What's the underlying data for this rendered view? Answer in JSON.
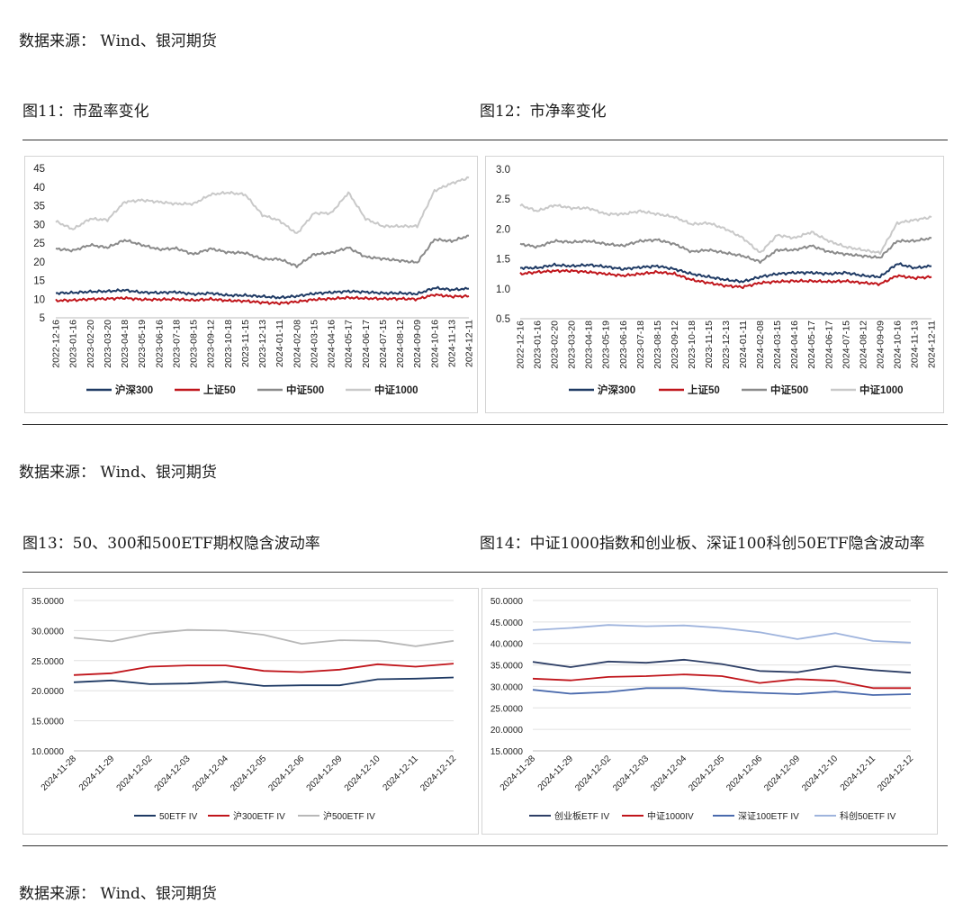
{
  "page": {
    "source1": "数据来源：  Wind、银河期货",
    "source2": "数据来源：  Wind、银河期货",
    "source3": "数据来源：  Wind、银河期货",
    "fig11_title": "图11：市盈率变化",
    "fig12_title": "图12：市净率变化",
    "fig13_title": "图13：50、300和500ETF期权隐含波动率",
    "fig14_title": "图14：中证1000指数和创业板、深证100科创50ETF隐含波动率"
  },
  "chart_data": [
    {
      "id": "fig11",
      "type": "line",
      "x": [
        "2022-12-16",
        "2023-01-16",
        "2023-02-20",
        "2023-03-20",
        "2023-04-18",
        "2023-05-19",
        "2023-06-16",
        "2023-07-18",
        "2023-08-15",
        "2023-09-12",
        "2023-10-18",
        "2023-11-15",
        "2023-12-13",
        "2024-01-11",
        "2024-02-08",
        "2024-03-15",
        "2024-04-16",
        "2024-05-17",
        "2024-06-17",
        "2024-07-15",
        "2024-08-12",
        "2024-09-09",
        "2024-10-16",
        "2024-11-13",
        "2024-12-11"
      ],
      "ylim": [
        5,
        45
      ],
      "yticks": [
        "5",
        "10",
        "15",
        "20",
        "25",
        "30",
        "35",
        "40",
        "45"
      ],
      "series": [
        {
          "name": "沪深300",
          "color": "#1f3a64",
          "values": [
            11.6,
            11.7,
            12.0,
            12.1,
            12.4,
            11.8,
            11.7,
            11.9,
            11.3,
            11.6,
            11.0,
            11.0,
            10.7,
            10.4,
            10.8,
            11.5,
            11.8,
            12.1,
            11.9,
            11.6,
            11.6,
            11.4,
            13.0,
            12.5,
            12.8
          ]
        },
        {
          "name": "上证50",
          "color": "#c0151b",
          "values": [
            9.6,
            9.7,
            10.0,
            10.1,
            10.3,
            9.9,
            9.9,
            10.0,
            9.7,
            10.0,
            9.6,
            9.5,
            9.1,
            8.9,
            9.3,
            9.9,
            10.1,
            10.4,
            10.2,
            10.1,
            10.1,
            10.0,
            11.2,
            10.7,
            10.8
          ]
        },
        {
          "name": "中证500",
          "color": "#8a8a8a",
          "values": [
            23.5,
            23.0,
            24.5,
            23.8,
            25.8,
            24.5,
            23.3,
            23.6,
            22.0,
            23.5,
            22.5,
            22.4,
            20.7,
            20.7,
            18.8,
            22.0,
            22.4,
            23.8,
            21.3,
            20.8,
            20.3,
            19.8,
            26.0,
            25.5,
            27.0
          ]
        },
        {
          "name": "中证1000",
          "color": "#c9c9c9",
          "values": [
            30.8,
            28.7,
            31.5,
            31.2,
            36.0,
            36.5,
            36.0,
            35.5,
            35.5,
            38.0,
            38.5,
            38.0,
            32.5,
            31.0,
            27.5,
            33.0,
            33.0,
            38.5,
            31.5,
            29.5,
            29.5,
            29.5,
            39.0,
            41.0,
            42.5
          ]
        }
      ]
    },
    {
      "id": "fig12",
      "type": "line",
      "x": [
        "2022-12-16",
        "2023-01-16",
        "2023-02-20",
        "2023-03-20",
        "2023-04-18",
        "2023-05-19",
        "2023-06-16",
        "2023-07-18",
        "2023-08-15",
        "2023-09-12",
        "2023-10-18",
        "2023-11-15",
        "2023-12-13",
        "2024-01-11",
        "2024-02-08",
        "2024-03-15",
        "2024-04-16",
        "2024-05-17",
        "2024-06-17",
        "2024-07-15",
        "2024-08-12",
        "2024-09-09",
        "2024-10-16",
        "2024-11-13",
        "2024-12-11"
      ],
      "ylim": [
        0.5,
        3.0
      ],
      "yticks": [
        "0.5",
        "1.0",
        "1.5",
        "2.0",
        "2.5",
        "3.0"
      ],
      "series": [
        {
          "name": "沪深300",
          "color": "#1f3a64",
          "values": [
            1.35,
            1.35,
            1.4,
            1.38,
            1.4,
            1.37,
            1.33,
            1.36,
            1.38,
            1.33,
            1.25,
            1.2,
            1.15,
            1.12,
            1.2,
            1.25,
            1.27,
            1.27,
            1.25,
            1.27,
            1.22,
            1.2,
            1.42,
            1.35,
            1.38
          ]
        },
        {
          "name": "上证50",
          "color": "#c0151b",
          "values": [
            1.25,
            1.28,
            1.3,
            1.3,
            1.28,
            1.25,
            1.22,
            1.25,
            1.28,
            1.25,
            1.15,
            1.1,
            1.05,
            1.03,
            1.1,
            1.12,
            1.13,
            1.13,
            1.12,
            1.13,
            1.1,
            1.08,
            1.22,
            1.18,
            1.2
          ]
        },
        {
          "name": "中证500",
          "color": "#8a8a8a",
          "values": [
            1.75,
            1.7,
            1.8,
            1.78,
            1.8,
            1.75,
            1.72,
            1.8,
            1.82,
            1.75,
            1.62,
            1.65,
            1.6,
            1.55,
            1.45,
            1.65,
            1.65,
            1.72,
            1.62,
            1.58,
            1.55,
            1.52,
            1.8,
            1.8,
            1.85
          ]
        },
        {
          "name": "中证1000",
          "color": "#c9c9c9",
          "values": [
            2.4,
            2.3,
            2.4,
            2.35,
            2.35,
            2.25,
            2.25,
            2.3,
            2.25,
            2.2,
            2.08,
            2.1,
            2.0,
            1.85,
            1.6,
            1.9,
            1.85,
            1.95,
            1.8,
            1.7,
            1.65,
            1.6,
            2.1,
            2.15,
            2.2
          ]
        }
      ]
    },
    {
      "id": "fig13",
      "type": "line",
      "x": [
        "2024-11-28",
        "2024-11-29",
        "2024-12-02",
        "2024-12-03",
        "2024-12-04",
        "2024-12-05",
        "2024-12-06",
        "2024-12-09",
        "2024-12-10",
        "2024-12-11",
        "2024-12-12"
      ],
      "ylim": [
        10,
        35
      ],
      "yticks": [
        "10.0000",
        "15.0000",
        "20.0000",
        "25.0000",
        "30.0000",
        "35.0000"
      ],
      "series": [
        {
          "name": "50ETF IV",
          "color": "#1f3a64",
          "values": [
            21.4,
            21.7,
            21.1,
            21.2,
            21.5,
            20.8,
            20.9,
            20.9,
            21.9,
            22.0,
            22.2
          ]
        },
        {
          "name": "沪300ETF IV",
          "color": "#c0151b",
          "values": [
            22.6,
            22.9,
            24.0,
            24.2,
            24.2,
            23.3,
            23.1,
            23.5,
            24.4,
            24.0,
            24.5
          ]
        },
        {
          "name": "沪500ETF IV",
          "color": "#b8b8b8",
          "values": [
            28.8,
            28.2,
            29.5,
            30.1,
            30.0,
            29.3,
            27.8,
            28.4,
            28.3,
            27.4,
            28.3
          ]
        }
      ]
    },
    {
      "id": "fig14",
      "type": "line",
      "x": [
        "2024-11-28",
        "2024-11-29",
        "2024-12-02",
        "2024-12-03",
        "2024-12-04",
        "2024-12-05",
        "2024-12-06",
        "2024-12-09",
        "2024-12-10",
        "2024-12-11",
        "2024-12-12"
      ],
      "ylim": [
        15,
        50
      ],
      "yticks": [
        "15.0000",
        "20.0000",
        "25.0000",
        "30.0000",
        "35.0000",
        "40.0000",
        "45.0000",
        "50.0000"
      ],
      "series": [
        {
          "name": "创业板ETF IV",
          "color": "#2e3f66",
          "values": [
            35.7,
            34.5,
            35.8,
            35.5,
            36.2,
            35.2,
            33.6,
            33.3,
            34.7,
            33.8,
            33.2
          ]
        },
        {
          "name": "中证1000IV",
          "color": "#c0151b",
          "values": [
            31.8,
            31.4,
            32.2,
            32.4,
            32.8,
            32.4,
            30.8,
            31.7,
            31.3,
            29.6,
            29.6
          ]
        },
        {
          "name": "深证100ETF IV",
          "color": "#4a6aad",
          "values": [
            29.2,
            28.3,
            28.7,
            29.6,
            29.6,
            28.9,
            28.5,
            28.2,
            28.8,
            28.0,
            28.2
          ]
        },
        {
          "name": "科创50ETF IV",
          "color": "#9fb4dd",
          "values": [
            43.1,
            43.6,
            44.3,
            44.0,
            44.2,
            43.6,
            42.6,
            41.0,
            42.4,
            40.6,
            40.2
          ]
        }
      ]
    }
  ]
}
